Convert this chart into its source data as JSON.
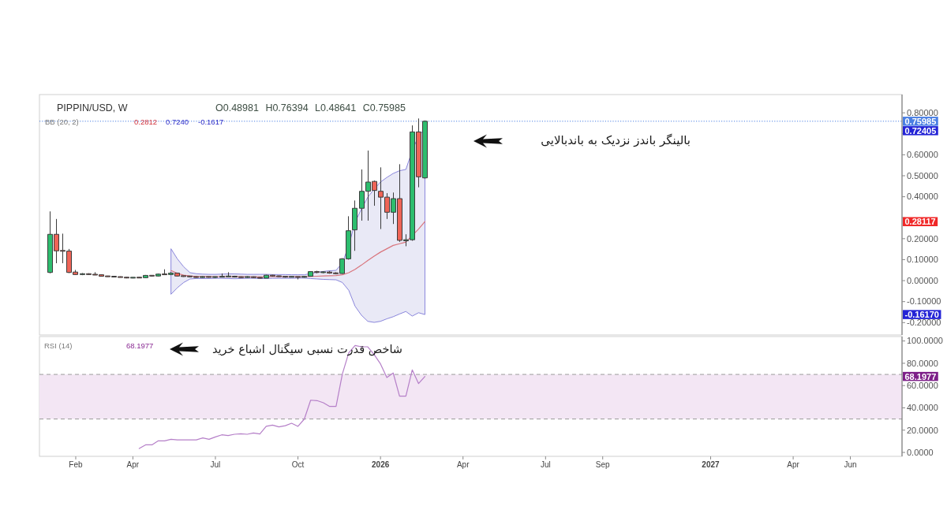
{
  "chart_data": [
    {
      "type": "candlestick",
      "title": "PIPPIN/USD, W",
      "x": [
        "2025-01-06",
        "2025-01-13",
        "2025-01-20",
        "2025-01-27",
        "2025-02-03",
        "2025-02-10",
        "2025-02-17",
        "2025-02-24",
        "2025-03-03",
        "2025-03-10",
        "2025-03-17",
        "2025-03-24",
        "2025-03-31",
        "2025-04-07",
        "2025-04-14",
        "2025-04-21",
        "2025-04-28",
        "2025-05-05",
        "2025-05-12",
        "2025-05-19",
        "2025-05-26",
        "2025-06-02",
        "2025-06-09",
        "2025-06-16",
        "2025-06-23",
        "2025-06-30",
        "2025-07-07",
        "2025-07-14",
        "2025-07-21",
        "2025-07-28",
        "2025-08-04",
        "2025-08-11",
        "2025-08-18",
        "2025-08-25",
        "2025-09-01",
        "2025-09-08",
        "2025-09-15",
        "2025-09-22",
        "2025-09-29",
        "2025-10-06",
        "2025-10-13",
        "2025-10-20",
        "2025-10-27",
        "2025-11-03",
        "2025-11-10",
        "2025-11-17",
        "2025-11-24",
        "2025-12-01",
        "2025-12-08",
        "2025-12-15",
        "2025-12-22",
        "2025-12-29",
        "2026-01-05",
        "2026-01-12",
        "2026-01-19",
        "2026-01-26",
        "2026-02-02",
        "2026-02-09",
        "2026-02-16",
        "2026-02-23"
      ],
      "ohlc": [
        [
          0.039,
          0.33,
          0.035,
          0.221
        ],
        [
          0.221,
          0.294,
          0.083,
          0.142
        ],
        [
          0.143,
          0.224,
          0.083,
          0.141
        ],
        [
          0.141,
          0.151,
          0.036,
          0.039
        ],
        [
          0.041,
          0.051,
          0.027,
          0.029
        ],
        [
          0.029,
          0.036,
          0.026,
          0.033
        ],
        [
          0.033,
          0.035,
          0.027,
          0.029
        ],
        [
          0.029,
          0.04,
          0.026,
          0.028
        ],
        [
          0.028,
          0.03,
          0.019,
          0.021
        ],
        [
          0.021,
          0.023,
          0.018,
          0.02
        ],
        [
          0.02,
          0.022,
          0.016,
          0.018
        ],
        [
          0.018,
          0.02,
          0.015,
          0.016
        ],
        [
          0.016,
          0.018,
          0.011,
          0.013
        ],
        [
          0.013,
          0.016,
          0.011,
          0.015
        ],
        [
          0.015,
          0.018,
          0.012,
          0.014
        ],
        [
          0.014,
          0.027,
          0.012,
          0.025
        ],
        [
          0.025,
          0.026,
          0.019,
          0.022
        ],
        [
          0.022,
          0.034,
          0.02,
          0.031
        ],
        [
          0.031,
          0.054,
          0.027,
          0.029
        ],
        [
          0.029,
          0.041,
          0.026,
          0.036
        ],
        [
          0.036,
          0.038,
          0.02,
          0.022
        ],
        [
          0.022,
          0.024,
          0.018,
          0.021
        ],
        [
          0.021,
          0.023,
          0.016,
          0.019
        ],
        [
          0.019,
          0.021,
          0.013,
          0.015
        ],
        [
          0.015,
          0.021,
          0.013,
          0.019
        ],
        [
          0.019,
          0.02,
          0.014,
          0.016
        ],
        [
          0.016,
          0.02,
          0.012,
          0.018
        ],
        [
          0.018,
          0.034,
          0.016,
          0.019
        ],
        [
          0.019,
          0.04,
          0.017,
          0.021
        ],
        [
          0.021,
          0.023,
          0.015,
          0.017
        ],
        [
          0.017,
          0.02,
          0.013,
          0.016
        ],
        [
          0.016,
          0.021,
          0.013,
          0.018
        ],
        [
          0.018,
          0.02,
          0.012,
          0.015
        ],
        [
          0.015,
          0.018,
          0.01,
          0.012
        ],
        [
          0.012,
          0.028,
          0.011,
          0.026
        ],
        [
          0.026,
          0.028,
          0.019,
          0.022
        ],
        [
          0.022,
          0.024,
          0.017,
          0.02
        ],
        [
          0.02,
          0.022,
          0.014,
          0.017
        ],
        [
          0.017,
          0.021,
          0.015,
          0.019
        ],
        [
          0.019,
          0.02,
          0.006,
          0.016
        ],
        [
          0.016,
          0.022,
          0.014,
          0.02
        ],
        [
          0.021,
          0.045,
          0.02,
          0.043
        ],
        [
          0.043,
          0.047,
          0.035,
          0.039
        ],
        [
          0.039,
          0.045,
          0.035,
          0.041
        ],
        [
          0.041,
          0.046,
          0.033,
          0.036
        ],
        [
          0.036,
          0.04,
          0.03,
          0.034
        ],
        [
          0.034,
          0.107,
          0.032,
          0.104
        ],
        [
          0.104,
          0.307,
          0.1,
          0.238
        ],
        [
          0.242,
          0.382,
          0.142,
          0.345
        ],
        [
          0.345,
          0.53,
          0.286,
          0.426
        ],
        [
          0.426,
          0.62,
          0.286,
          0.47
        ],
        [
          0.473,
          0.477,
          0.357,
          0.43
        ],
        [
          0.426,
          0.54,
          0.246,
          0.398
        ],
        [
          0.398,
          0.417,
          0.294,
          0.326
        ],
        [
          0.326,
          0.42,
          0.27,
          0.391
        ],
        [
          0.391,
          0.555,
          0.185,
          0.192
        ],
        [
          0.19,
          0.221,
          0.164,
          0.195
        ],
        [
          0.195,
          0.74,
          0.19,
          0.709
        ],
        [
          0.709,
          0.773,
          0.445,
          0.495
        ],
        [
          0.48981,
          0.76394,
          0.48641,
          0.75985
        ]
      ],
      "colors": [
        "#2DBD6E",
        "#EF6457",
        "#EF6457",
        "#EF6457",
        "#EF6457",
        "#2DBD6E",
        "#EF6457",
        "#EF6457",
        "#EF6457",
        "#EF6457",
        "#EF6457",
        "#EF6457",
        "#EF6457",
        "#2DBD6E",
        "#EF6457",
        "#2DBD6E",
        "#EF6457",
        "#2DBD6E",
        "#EF6457",
        "#2DBD6E",
        "#EF6457",
        "#EF6457",
        "#EF6457",
        "#EF6457",
        "#2DBD6E",
        "#EF6457",
        "#2DBD6E",
        "#2DBD6E",
        "#2DBD6E",
        "#EF6457",
        "#EF6457",
        "#2DBD6E",
        "#EF6457",
        "#EF6457",
        "#2DBD6E",
        "#EF6457",
        "#EF6457",
        "#EF6457",
        "#2DBD6E",
        "#EF6457",
        "#2DBD6E",
        "#2DBD6E",
        "#EF6457",
        "#2DBD6E",
        "#EF6457",
        "#EF6457",
        "#2DBD6E",
        "#2DBD6E",
        "#2DBD6E",
        "#2DBD6E",
        "#2DBD6E",
        "#EF6457",
        "#EF6457",
        "#EF6457",
        "#2DBD6E",
        "#EF6457",
        "#2DBD6E",
        "#2DBD6E",
        "#EF6457",
        "#2DBD6E"
      ],
      "series": [
        {
          "type": "line",
          "color": "#D9757D",
          "values": [
            null,
            null,
            null,
            null,
            null,
            null,
            null,
            null,
            null,
            null,
            null,
            null,
            null,
            null,
            null,
            null,
            null,
            null,
            null,
            0.048,
            0.035,
            0.026,
            0.022,
            0.02,
            0.02,
            0.019,
            0.019,
            0.019,
            0.019,
            0.019,
            0.019,
            0.018,
            0.018,
            0.018,
            0.019,
            0.019,
            0.019,
            0.019,
            0.019,
            0.019,
            0.019,
            0.02,
            0.021,
            0.022,
            0.023,
            0.024,
            0.028,
            0.038,
            0.054,
            0.074,
            0.096,
            0.117,
            0.136,
            0.152,
            0.168,
            0.176,
            0.184,
            0.215,
            0.246,
            0.2812
          ],
          "upper": [
            null,
            null,
            null,
            null,
            null,
            null,
            null,
            null,
            null,
            null,
            null,
            null,
            null,
            null,
            null,
            null,
            null,
            null,
            null,
            0.152,
            0.104,
            0.066,
            0.038,
            0.033,
            0.031,
            0.03,
            0.03,
            0.031,
            0.032,
            0.032,
            0.031,
            0.03,
            0.03,
            0.03,
            0.03,
            0.029,
            0.029,
            0.029,
            0.028,
            0.028,
            0.028,
            0.034,
            0.04,
            0.044,
            0.047,
            0.049,
            0.085,
            0.167,
            0.279,
            0.342,
            0.398,
            0.436,
            0.47,
            0.492,
            0.511,
            0.524,
            0.53,
            0.62,
            0.69,
            0.724
          ],
          "lower": [
            null,
            null,
            null,
            null,
            null,
            null,
            null,
            null,
            null,
            null,
            null,
            null,
            null,
            null,
            null,
            null,
            null,
            null,
            null,
            -0.065,
            -0.034,
            -0.009,
            0.008,
            0.01,
            0.01,
            0.01,
            0.011,
            0.011,
            0.01,
            0.009,
            0.01,
            0.011,
            0.011,
            0.01,
            0.01,
            0.011,
            0.011,
            0.011,
            0.011,
            0.012,
            0.012,
            0.01,
            0.008,
            0.006,
            0.005,
            0.004,
            -0.009,
            -0.046,
            -0.122,
            -0.165,
            -0.194,
            -0.199,
            -0.194,
            -0.182,
            -0.172,
            -0.159,
            -0.147,
            -0.169,
            -0.153,
            -0.1617
          ]
        }
      ],
      "xlim": [
        "2024-12-25",
        "2027-08-03"
      ],
      "ylim": [
        -0.259,
        0.887
      ],
      "yticks": [
        {
          "value": 0.8,
          "label": "0.80000"
        },
        {
          "value": 0.7,
          "label": null
        },
        {
          "value": 0.6,
          "label": "0.60000"
        },
        {
          "value": 0.5,
          "label": "0.50000"
        },
        {
          "value": 0.4,
          "label": "0.40000"
        },
        {
          "value": 0.3,
          "label": null
        },
        {
          "value": 0.2,
          "label": "0.20000"
        },
        {
          "value": 0.1,
          "label": "0.10000"
        },
        {
          "value": 0,
          "label": "0.00000"
        },
        {
          "value": -0.1,
          "label": "-0.10000"
        },
        {
          "value": -0.2,
          "label": "-0.20000"
        }
      ],
      "tick_labels": "y",
      "ref_lines": [
        {
          "axis": "y",
          "value": 0.75985,
          "label": "0.75985",
          "color": "#4A7FE3",
          "line_style": "dotted"
        }
      ],
      "annotations": [
        "O0.48981 H0.76394 L0.48641 C0.75985",
        "BB (20, 2)",
        "0.2812",
        "0.7240",
        "-0.1617",
        "0.72405",
        "0.28117",
        "-0.16170",
        "بالینگر باندز نزدیک به باندبالایی"
      ]
    },
    {
      "type": "line",
      "series": [
        {
          "color": "#B57FC8",
          "x": [
            "2025-04-14",
            "2025-04-21",
            "2025-04-28",
            "2025-05-05",
            "2025-05-12",
            "2025-05-19",
            "2025-05-26",
            "2025-06-02",
            "2025-06-09",
            "2025-06-16",
            "2025-06-23",
            "2025-06-30",
            "2025-07-07",
            "2025-07-14",
            "2025-07-21",
            "2025-07-28",
            "2025-08-04",
            "2025-08-11",
            "2025-08-18",
            "2025-08-25",
            "2025-09-01",
            "2025-09-08",
            "2025-09-15",
            "2025-09-22",
            "2025-09-29",
            "2025-10-06",
            "2025-10-13",
            "2025-10-20",
            "2025-10-27",
            "2025-11-03",
            "2025-11-10",
            "2025-11-17",
            "2025-11-24",
            "2025-12-01",
            "2025-12-08",
            "2025-12-15",
            "2025-12-22",
            "2025-12-29",
            "2026-01-05",
            "2026-01-12",
            "2026-01-19",
            "2026-01-26",
            "2026-02-02",
            "2026-02-09",
            "2026-02-16",
            "2026-02-23"
          ],
          "values": [
            3.5,
            6.8,
            6.8,
            10.4,
            10.4,
            11.8,
            11.3,
            11.3,
            11.3,
            11.3,
            13,
            11.8,
            13.9,
            15.8,
            15.1,
            16.3,
            16.7,
            16.3,
            17.5,
            16.6,
            23.4,
            24.5,
            22.9,
            24,
            26.2,
            23.4,
            29.9,
            46.9,
            46.5,
            44.6,
            41.3,
            41.3,
            70.5,
            89.4,
            96,
            94.8,
            94.8,
            87.8,
            79.5,
            67.2,
            71.3,
            50.5,
            50.5,
            74.1,
            61.8,
            68.1977
          ]
        }
      ],
      "xlim": [
        "2024-12-25",
        "2027-08-03"
      ],
      "ylim": [
        -3.5,
        104
      ],
      "xticks": [
        {
          "value": "2025-02-03",
          "label": "Feb"
        },
        {
          "value": "2025-04-07",
          "label": "Apr"
        },
        {
          "value": "2025-07-07",
          "label": "Jul"
        },
        {
          "value": "2025-10-06",
          "label": "Oct"
        },
        {
          "value": "2026-01-05",
          "label": "2026"
        },
        {
          "value": "2026-04-06",
          "label": "Apr"
        },
        {
          "value": "2026-07-06",
          "label": "Jul"
        },
        {
          "value": "2026-09-07",
          "label": "Sep"
        },
        {
          "value": "2027-01-04",
          "label": "2027"
        },
        {
          "value": "2027-04-05",
          "label": "Apr"
        },
        {
          "value": "2027-06-07",
          "label": "Jun"
        }
      ],
      "yticks": [
        {
          "value": 100,
          "label": "100.0000"
        },
        {
          "value": 80,
          "label": "80.0000"
        },
        {
          "value": 60,
          "label": "60.0000"
        },
        {
          "value": 40,
          "label": "40.0000"
        },
        {
          "value": 20,
          "label": "20.0000"
        },
        {
          "value": 0,
          "label": "0.0000"
        }
      ],
      "bands": [
        {
          "axis": "y",
          "from": 30,
          "to": 70,
          "color": "#F3E6F4"
        }
      ],
      "ref_lines": [
        {
          "axis": "y",
          "value": 70,
          "color": "#9A9A9A",
          "line_style": "dashed"
        },
        {
          "axis": "y",
          "value": 30,
          "color": "#9A9A9A",
          "line_style": "dashed"
        }
      ],
      "annotations": [
        "RSI (14)",
        "68.1977",
        "68.1977",
        "شاخص قدرت نسبی سیگنال اشباع خرید"
      ]
    }
  ]
}
